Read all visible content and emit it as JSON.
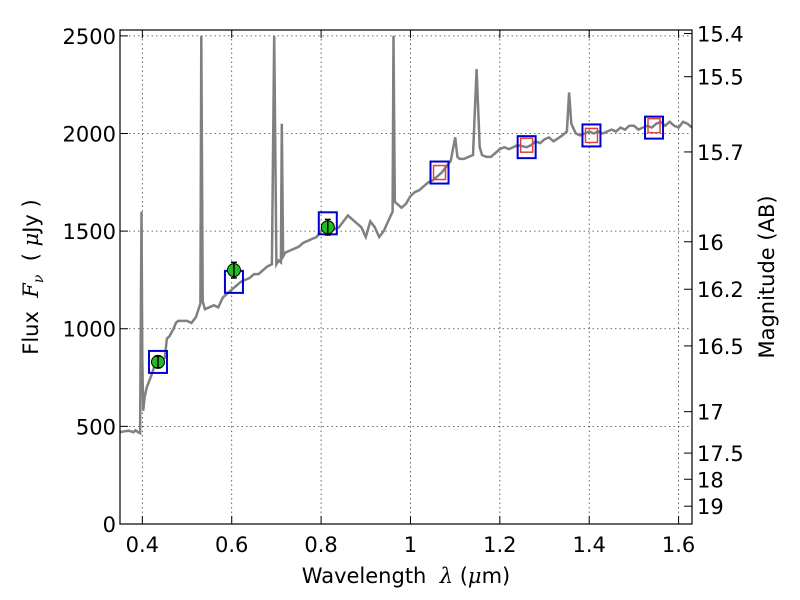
{
  "chart_data": {
    "type": "line",
    "xlabel": "Wavelength  λ (μm)",
    "ylabel": "Flux  F_ν  ( μJy )",
    "y2label": "Magnitude (AB)",
    "xlim": [
      0.35,
      1.63
    ],
    "ylim": [
      0,
      2530
    ],
    "grid": true,
    "x_ticks": [
      {
        "value": 0.4,
        "label": "0.4"
      },
      {
        "value": 0.6,
        "label": "0.6"
      },
      {
        "value": 0.8,
        "label": "0.8"
      },
      {
        "value": 1.0,
        "label": "1"
      },
      {
        "value": 1.2,
        "label": "1.2"
      },
      {
        "value": 1.4,
        "label": "1.4"
      },
      {
        "value": 1.6,
        "label": "1.6"
      }
    ],
    "y_ticks": [
      {
        "value": 0,
        "label": "0"
      },
      {
        "value": 500,
        "label": "500"
      },
      {
        "value": 1000,
        "label": "1000"
      },
      {
        "value": 1500,
        "label": "1500"
      },
      {
        "value": 2000,
        "label": "2000"
      },
      {
        "value": 2500,
        "label": "2500"
      }
    ],
    "y2_ticks": [
      {
        "value": 15.4,
        "label": "15.4"
      },
      {
        "value": 15.5,
        "label": "15.5"
      },
      {
        "value": 15.7,
        "label": "15.7"
      },
      {
        "value": 16,
        "label": "16"
      },
      {
        "value": 16.2,
        "label": "16.2"
      },
      {
        "value": 16.5,
        "label": "16.5"
      },
      {
        "value": 17,
        "label": "17"
      },
      {
        "value": 17.5,
        "label": "17.5"
      },
      {
        "value": 18,
        "label": "18"
      },
      {
        "value": 19,
        "label": "19"
      }
    ],
    "series": [
      {
        "type": "line",
        "color": "#808080",
        "points": [
          [
            0.35,
            470
          ],
          [
            0.36,
            475
          ],
          [
            0.37,
            478
          ],
          [
            0.38,
            470
          ],
          [
            0.385,
            480
          ],
          [
            0.39,
            470
          ],
          [
            0.395,
            465
          ],
          [
            0.398,
            1600
          ],
          [
            0.4,
            850
          ],
          [
            0.402,
            580
          ],
          [
            0.405,
            650
          ],
          [
            0.41,
            700
          ],
          [
            0.42,
            760
          ],
          [
            0.43,
            830
          ],
          [
            0.44,
            840
          ],
          [
            0.45,
            850
          ],
          [
            0.455,
            950
          ],
          [
            0.46,
            960
          ],
          [
            0.47,
            1000
          ],
          [
            0.475,
            1030
          ],
          [
            0.48,
            1040
          ],
          [
            0.49,
            1040
          ],
          [
            0.5,
            1040
          ],
          [
            0.51,
            1030
          ],
          [
            0.52,
            1060
          ],
          [
            0.53,
            1130
          ],
          [
            0.532,
            2500
          ],
          [
            0.535,
            1140
          ],
          [
            0.54,
            1100
          ],
          [
            0.55,
            1110
          ],
          [
            0.56,
            1120
          ],
          [
            0.57,
            1110
          ],
          [
            0.58,
            1160
          ],
          [
            0.59,
            1180
          ],
          [
            0.6,
            1200
          ],
          [
            0.61,
            1220
          ],
          [
            0.62,
            1240
          ],
          [
            0.63,
            1250
          ],
          [
            0.64,
            1260
          ],
          [
            0.65,
            1280
          ],
          [
            0.66,
            1280
          ],
          [
            0.67,
            1300
          ],
          [
            0.68,
            1320
          ],
          [
            0.69,
            1330
          ],
          [
            0.695,
            2500
          ],
          [
            0.7,
            1330
          ],
          [
            0.705,
            1350
          ],
          [
            0.71,
            1340
          ],
          [
            0.712,
            2050
          ],
          [
            0.715,
            1370
          ],
          [
            0.72,
            1390
          ],
          [
            0.73,
            1400
          ],
          [
            0.74,
            1410
          ],
          [
            0.75,
            1420
          ],
          [
            0.76,
            1440
          ],
          [
            0.77,
            1450
          ],
          [
            0.78,
            1460
          ],
          [
            0.79,
            1470
          ],
          [
            0.8,
            1500
          ],
          [
            0.81,
            1520
          ],
          [
            0.82,
            1530
          ],
          [
            0.83,
            1510
          ],
          [
            0.84,
            1520
          ],
          [
            0.85,
            1550
          ],
          [
            0.86,
            1580
          ],
          [
            0.87,
            1560
          ],
          [
            0.88,
            1540
          ],
          [
            0.89,
            1520
          ],
          [
            0.9,
            1470
          ],
          [
            0.91,
            1550
          ],
          [
            0.92,
            1520
          ],
          [
            0.93,
            1470
          ],
          [
            0.94,
            1500
          ],
          [
            0.95,
            1550
          ],
          [
            0.96,
            1600
          ],
          [
            0.962,
            2500
          ],
          [
            0.965,
            1650
          ],
          [
            0.97,
            1640
          ],
          [
            0.98,
            1620
          ],
          [
            0.99,
            1640
          ],
          [
            1.0,
            1680
          ],
          [
            1.01,
            1700
          ],
          [
            1.02,
            1710
          ],
          [
            1.03,
            1730
          ],
          [
            1.04,
            1750
          ],
          [
            1.05,
            1760
          ],
          [
            1.06,
            1780
          ],
          [
            1.07,
            1800
          ],
          [
            1.08,
            1830
          ],
          [
            1.09,
            1860
          ],
          [
            1.1,
            1980
          ],
          [
            1.105,
            1880
          ],
          [
            1.11,
            1870
          ],
          [
            1.12,
            1870
          ],
          [
            1.13,
            1880
          ],
          [
            1.14,
            1890
          ],
          [
            1.148,
            2330
          ],
          [
            1.155,
            1930
          ],
          [
            1.16,
            1890
          ],
          [
            1.17,
            1880
          ],
          [
            1.18,
            1880
          ],
          [
            1.19,
            1900
          ],
          [
            1.2,
            1920
          ],
          [
            1.21,
            1930
          ],
          [
            1.22,
            1920
          ],
          [
            1.23,
            1930
          ],
          [
            1.24,
            1940
          ],
          [
            1.25,
            1935
          ],
          [
            1.26,
            1930
          ],
          [
            1.27,
            1940
          ],
          [
            1.28,
            1960
          ],
          [
            1.29,
            1950
          ],
          [
            1.3,
            1970
          ],
          [
            1.31,
            1980
          ],
          [
            1.32,
            1960
          ],
          [
            1.33,
            1975
          ],
          [
            1.34,
            1990
          ],
          [
            1.35,
            2010
          ],
          [
            1.355,
            2210
          ],
          [
            1.36,
            2050
          ],
          [
            1.37,
            2000
          ],
          [
            1.38,
            1990
          ],
          [
            1.39,
            2000
          ],
          [
            1.4,
            2010
          ],
          [
            1.41,
            2000
          ],
          [
            1.42,
            2010
          ],
          [
            1.43,
            2000
          ],
          [
            1.44,
            2010
          ],
          [
            1.45,
            2020
          ],
          [
            1.46,
            2010
          ],
          [
            1.47,
            2030
          ],
          [
            1.48,
            2020
          ],
          [
            1.49,
            2040
          ],
          [
            1.5,
            2040
          ],
          [
            1.51,
            2020
          ],
          [
            1.52,
            2030
          ],
          [
            1.53,
            2040
          ],
          [
            1.54,
            2030
          ],
          [
            1.55,
            2050
          ],
          [
            1.56,
            2060
          ],
          [
            1.57,
            2040
          ],
          [
            1.58,
            2060
          ],
          [
            1.59,
            2040
          ],
          [
            1.6,
            2030
          ],
          [
            1.61,
            2060
          ],
          [
            1.62,
            2050
          ],
          [
            1.63,
            2030
          ]
        ]
      },
      {
        "type": "scatter",
        "marker": "square",
        "color": "#0000cc",
        "points": [
          [
            0.435,
            830
          ],
          [
            0.605,
            1240
          ],
          [
            0.815,
            1540
          ],
          [
            1.065,
            1800
          ],
          [
            1.26,
            1930
          ],
          [
            1.405,
            1990
          ],
          [
            1.545,
            2030
          ]
        ]
      },
      {
        "type": "scatter",
        "marker": "circle",
        "color": "#22bb22",
        "points": [
          [
            0.435,
            830
          ],
          [
            0.605,
            1300
          ],
          [
            0.815,
            1520
          ]
        ],
        "yerr": [
          30,
          40,
          40
        ]
      },
      {
        "type": "scatter",
        "marker": "small-square",
        "color": "#e04040",
        "points": [
          [
            1.065,
            1800
          ],
          [
            1.26,
            1940
          ],
          [
            1.405,
            1990
          ],
          [
            1.545,
            2040
          ]
        ]
      }
    ]
  }
}
